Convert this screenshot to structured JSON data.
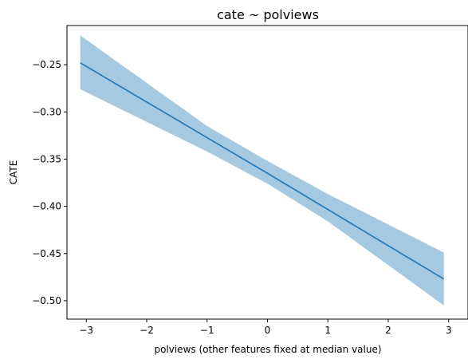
{
  "chart_data": {
    "type": "line",
    "title": "cate ~ polviews",
    "xlabel": "polviews (other features fixed at median value)",
    "ylabel": "CATE",
    "xlim": [
      -3.32,
      3.32
    ],
    "ylim": [
      -0.5195,
      -0.2085
    ],
    "x_ticks": [
      -3,
      -2,
      -1,
      0,
      1,
      2,
      3
    ],
    "x_tick_labels": [
      "−3",
      "−2",
      "−1",
      "0",
      "1",
      "2",
      "3"
    ],
    "y_ticks": [
      -0.25,
      -0.3,
      -0.35,
      -0.4,
      -0.45,
      -0.5
    ],
    "y_tick_labels": [
      "−0.25",
      "−0.30",
      "−0.35",
      "−0.40",
      "−0.45",
      "−0.50"
    ],
    "grid": false,
    "series": [
      {
        "values": [
          {
            "x": -3.1,
            "y": -0.248
          },
          {
            "x": 0,
            "y": -0.365
          },
          {
            "x": 2.92,
            "y": -0.477
          }
        ],
        "color": "#1f77b4"
      }
    ],
    "band": {
      "color": "#a5c9e1",
      "upper": [
        {
          "x": -3.1,
          "y": -0.219
        },
        {
          "x": -1,
          "y": -0.315
        },
        {
          "x": 0,
          "y": -0.352
        },
        {
          "x": 1,
          "y": -0.387
        },
        {
          "x": 2.92,
          "y": -0.449
        }
      ],
      "lower": [
        {
          "x": -3.1,
          "y": -0.276
        },
        {
          "x": -1,
          "y": -0.342
        },
        {
          "x": 0,
          "y": -0.376
        },
        {
          "x": 1,
          "y": -0.416
        },
        {
          "x": 2.92,
          "y": -0.505
        }
      ]
    }
  }
}
